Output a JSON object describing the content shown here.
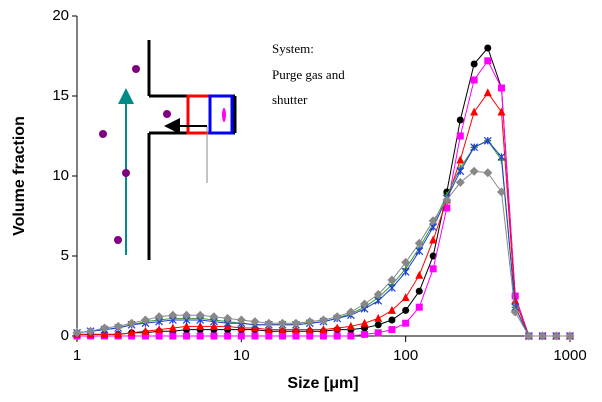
{
  "chart_data": {
    "type": "line",
    "xlabel": "Size [μm]",
    "ylabel": "Volume fraction",
    "annotation": [
      "System:",
      "Purge gas and",
      "shutter"
    ],
    "x": [
      1,
      1.21,
      1.47,
      1.78,
      2.15,
      2.61,
      3.16,
      3.83,
      4.64,
      5.62,
      6.81,
      8.25,
      10,
      12.1,
      14.7,
      17.8,
      21.5,
      26.1,
      31.6,
      38.3,
      46.4,
      56.2,
      68.1,
      82.5,
      100,
      121,
      147,
      178,
      215,
      261,
      316,
      383,
      464,
      562,
      681,
      825,
      1000
    ],
    "log_x": true,
    "xlim": [
      1,
      1000
    ],
    "xticks": [
      1,
      10,
      100,
      1000
    ],
    "ylim": [
      0,
      20
    ],
    "yticks": [
      0,
      5,
      10,
      15,
      20
    ],
    "grid": false,
    "series": [
      {
        "color": "#000000",
        "marker": "circle",
        "values": [
          0.1,
          0.1,
          0.1,
          0.1,
          0.2,
          0.2,
          0.3,
          0.3,
          0.4,
          0.4,
          0.4,
          0.4,
          0.4,
          0.4,
          0.3,
          0.3,
          0.3,
          0.3,
          0.3,
          0.4,
          0.4,
          0.5,
          0.7,
          1.0,
          1.6,
          2.8,
          5.0,
          9.0,
          13.5,
          17.0,
          18.0,
          15.5,
          2.5,
          0,
          0,
          0,
          0
        ]
      },
      {
        "color": "#ff00ff",
        "marker": "square",
        "values": [
          0,
          0,
          0,
          0,
          0,
          0,
          0,
          0,
          0,
          0,
          0,
          0,
          0,
          0,
          0,
          0,
          0,
          0,
          0,
          0,
          0,
          0.1,
          0.2,
          0.4,
          0.8,
          1.8,
          4.2,
          8.0,
          12.5,
          16.0,
          17.2,
          15.5,
          2.5,
          0,
          0,
          0,
          0
        ]
      },
      {
        "color": "#ff0000",
        "marker": "triangle",
        "values": [
          0.1,
          0.1,
          0.1,
          0.1,
          0.2,
          0.3,
          0.4,
          0.5,
          0.6,
          0.6,
          0.6,
          0.6,
          0.5,
          0.5,
          0.4,
          0.4,
          0.4,
          0.4,
          0.4,
          0.5,
          0.6,
          0.8,
          1.1,
          1.6,
          2.4,
          3.8,
          6.0,
          8.5,
          11.0,
          14.0,
          15.2,
          14.0,
          2.2,
          0,
          0,
          0,
          0
        ]
      },
      {
        "color": "#339933",
        "marker": "plus",
        "values": [
          0.2,
          0.3,
          0.4,
          0.5,
          0.7,
          0.9,
          1.0,
          1.1,
          1.1,
          1.1,
          1.0,
          0.9,
          0.8,
          0.7,
          0.7,
          0.7,
          0.7,
          0.8,
          0.9,
          1.1,
          1.4,
          1.8,
          2.4,
          3.2,
          4.2,
          5.5,
          7.0,
          8.8,
          10.5,
          11.8,
          12.2,
          11.0,
          1.8,
          0,
          0,
          0,
          0
        ]
      },
      {
        "color": "#1f3fcc",
        "marker": "asterisk",
        "values": [
          0.2,
          0.3,
          0.4,
          0.5,
          0.7,
          0.8,
          0.9,
          1.0,
          1.0,
          1.0,
          0.9,
          0.8,
          0.8,
          0.7,
          0.7,
          0.7,
          0.7,
          0.8,
          0.9,
          1.1,
          1.3,
          1.7,
          2.2,
          3.0,
          4.0,
          5.3,
          6.8,
          8.6,
          10.3,
          11.8,
          12.2,
          11.2,
          1.8,
          0,
          0,
          0,
          0
        ]
      },
      {
        "color": "#888888",
        "marker": "diamond",
        "values": [
          0.2,
          0.3,
          0.5,
          0.6,
          0.8,
          1.0,
          1.2,
          1.3,
          1.3,
          1.3,
          1.2,
          1.1,
          1.0,
          0.9,
          0.8,
          0.8,
          0.8,
          0.9,
          1.0,
          1.2,
          1.5,
          2.0,
          2.6,
          3.5,
          4.6,
          5.8,
          7.2,
          8.5,
          9.6,
          10.3,
          10.2,
          9.0,
          1.5,
          0,
          0,
          0,
          0
        ]
      }
    ]
  }
}
